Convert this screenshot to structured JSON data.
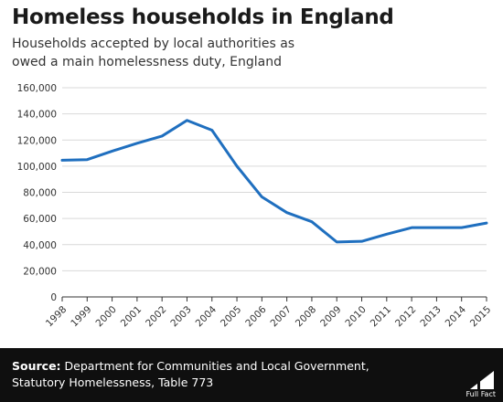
{
  "header": {
    "title": "Homeless households in England",
    "subtitle": "Households accepted by local authorities as owed a main homelessness duty, England"
  },
  "footer": {
    "source_label": "Source:",
    "source_text": "Department for Communities and Local Government, Statutory Homelessness, Table 773",
    "logo_text": "Full Fact"
  },
  "colors": {
    "line": "#1f6fbf",
    "grid": "#d9d9d9",
    "footer_bg": "#0f0f0f"
  },
  "chart_data": {
    "type": "line",
    "title": "Homeless households in England",
    "subtitle": "Households accepted by local authorities as owed a main homelessness duty, England",
    "xlabel": "",
    "ylabel": "",
    "ylim": [
      0,
      160000
    ],
    "yticks": [
      0,
      20000,
      40000,
      60000,
      80000,
      100000,
      120000,
      140000,
      160000
    ],
    "ytick_labels": [
      "0",
      "20,000",
      "40,000",
      "60,000",
      "80,000",
      "100,000",
      "120,000",
      "140,000",
      "160,000"
    ],
    "categories": [
      "1998",
      "1999",
      "2000",
      "2001",
      "2002",
      "2003",
      "2004",
      "2005",
      "2006",
      "2007",
      "2008",
      "2009",
      "2010",
      "2011",
      "2012",
      "2013",
      "2014",
      "2015"
    ],
    "series": [
      {
        "values": [
          104500,
          105000,
          111500,
          117500,
          123000,
          135000,
          127500,
          100000,
          76500,
          64500,
          57500,
          42000,
          42500,
          48000,
          53000,
          53000,
          53000,
          56500
        ]
      }
    ],
    "grid": true,
    "legend": "none"
  }
}
